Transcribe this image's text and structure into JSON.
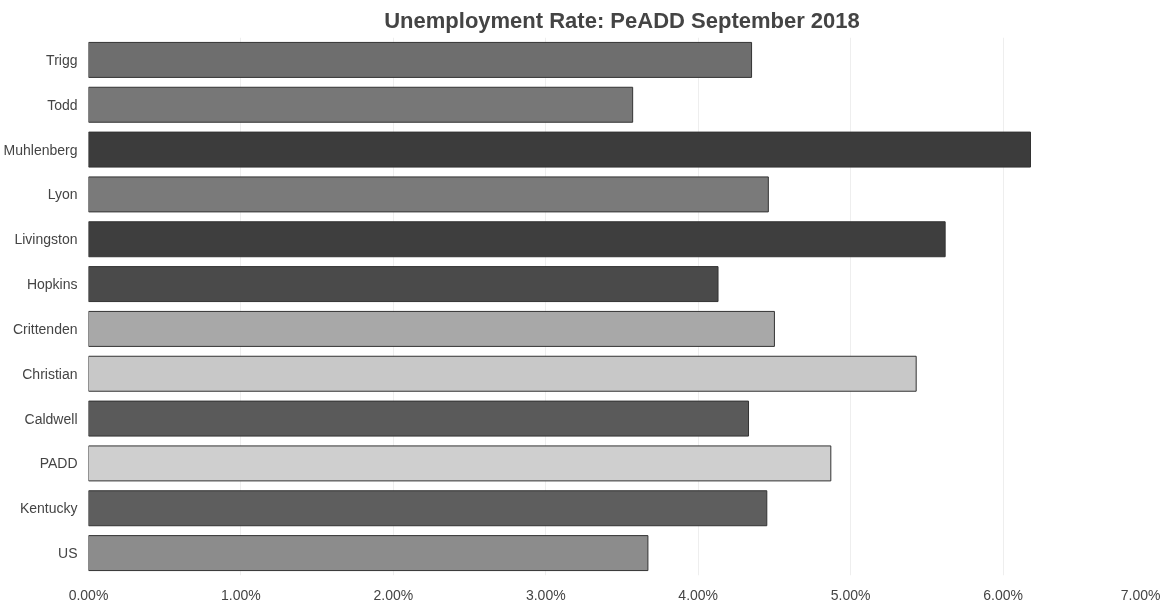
{
  "chart_data": {
    "type": "bar",
    "orientation": "horizontal",
    "title": "Unemployment Rate: PeADD September 2018",
    "categories": [
      "Trigg",
      "Todd",
      "Muhlenberg",
      "Lyon",
      "Livingston",
      "Hopkins",
      "Crittenden",
      "Christian",
      "Caldwell",
      "PADD",
      "Kentucky",
      "US"
    ],
    "values": [
      4.35,
      3.57,
      6.18,
      4.46,
      5.62,
      4.13,
      4.5,
      5.43,
      4.33,
      4.87,
      4.45,
      3.67
    ],
    "colors": [
      "#6e6e6e",
      "#777777",
      "#3c3c3c",
      "#7a7a7a",
      "#3e3e3e",
      "#4a4a4a",
      "#a8a8a8",
      "#c8c8c8",
      "#5a5a5a",
      "#cfcfcf",
      "#5e5e5e",
      "#8c8c8c"
    ],
    "xlim": [
      0,
      7
    ],
    "xticks": [
      {
        "value": 0,
        "label": "0.00%"
      },
      {
        "value": 1,
        "label": "1.00%"
      },
      {
        "value": 2,
        "label": "2.00%"
      },
      {
        "value": 3,
        "label": "3.00%"
      },
      {
        "value": 4,
        "label": "4.00%"
      },
      {
        "value": 5,
        "label": "5.00%"
      },
      {
        "value": 6,
        "label": "6.00%"
      },
      {
        "value": 7,
        "label": "7.00%"
      }
    ],
    "grid": "x"
  }
}
